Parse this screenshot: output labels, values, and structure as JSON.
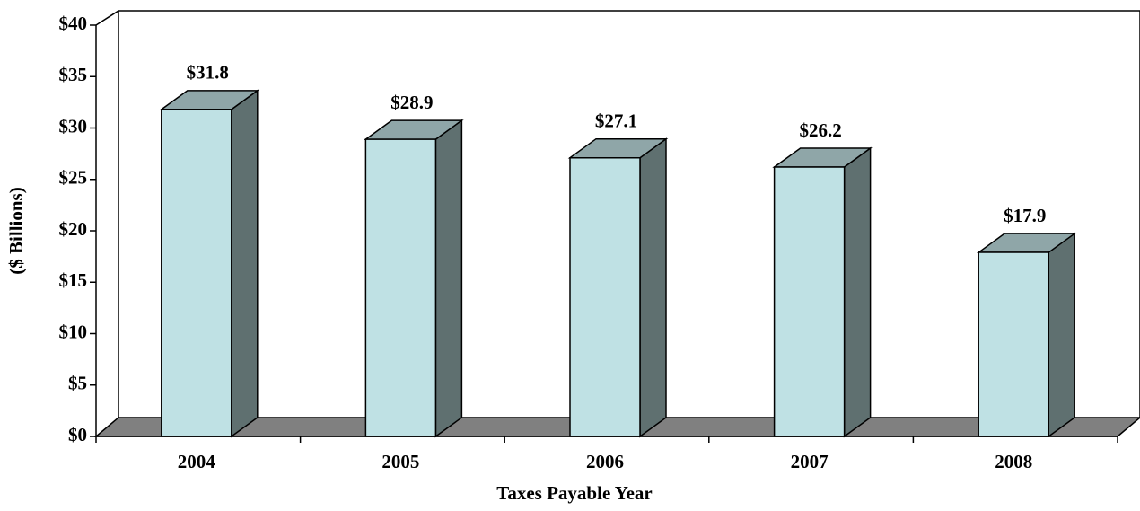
{
  "chart_data": {
    "type": "bar3d",
    "xlabel": "Taxes Payable Year",
    "ylabel": "($ Billions)",
    "categories": [
      "2004",
      "2005",
      "2006",
      "2007",
      "2008"
    ],
    "values": [
      31.8,
      28.9,
      27.1,
      26.2,
      17.9
    ],
    "value_labels": [
      "$31.8",
      "$28.9",
      "$27.1",
      "$26.2",
      "$17.9"
    ],
    "color": "#bfe1e4",
    "ylim": [
      0,
      40
    ],
    "yticks": [
      {
        "value": 0,
        "label": "$0"
      },
      {
        "value": 5,
        "label": "$5"
      },
      {
        "value": 10,
        "label": "$10"
      },
      {
        "value": 15,
        "label": "$15"
      },
      {
        "value": 20,
        "label": "$20"
      },
      {
        "value": 25,
        "label": "$25"
      },
      {
        "value": 30,
        "label": "$30"
      },
      {
        "value": 35,
        "label": "$35"
      },
      {
        "value": 40,
        "label": "$40"
      }
    ]
  }
}
